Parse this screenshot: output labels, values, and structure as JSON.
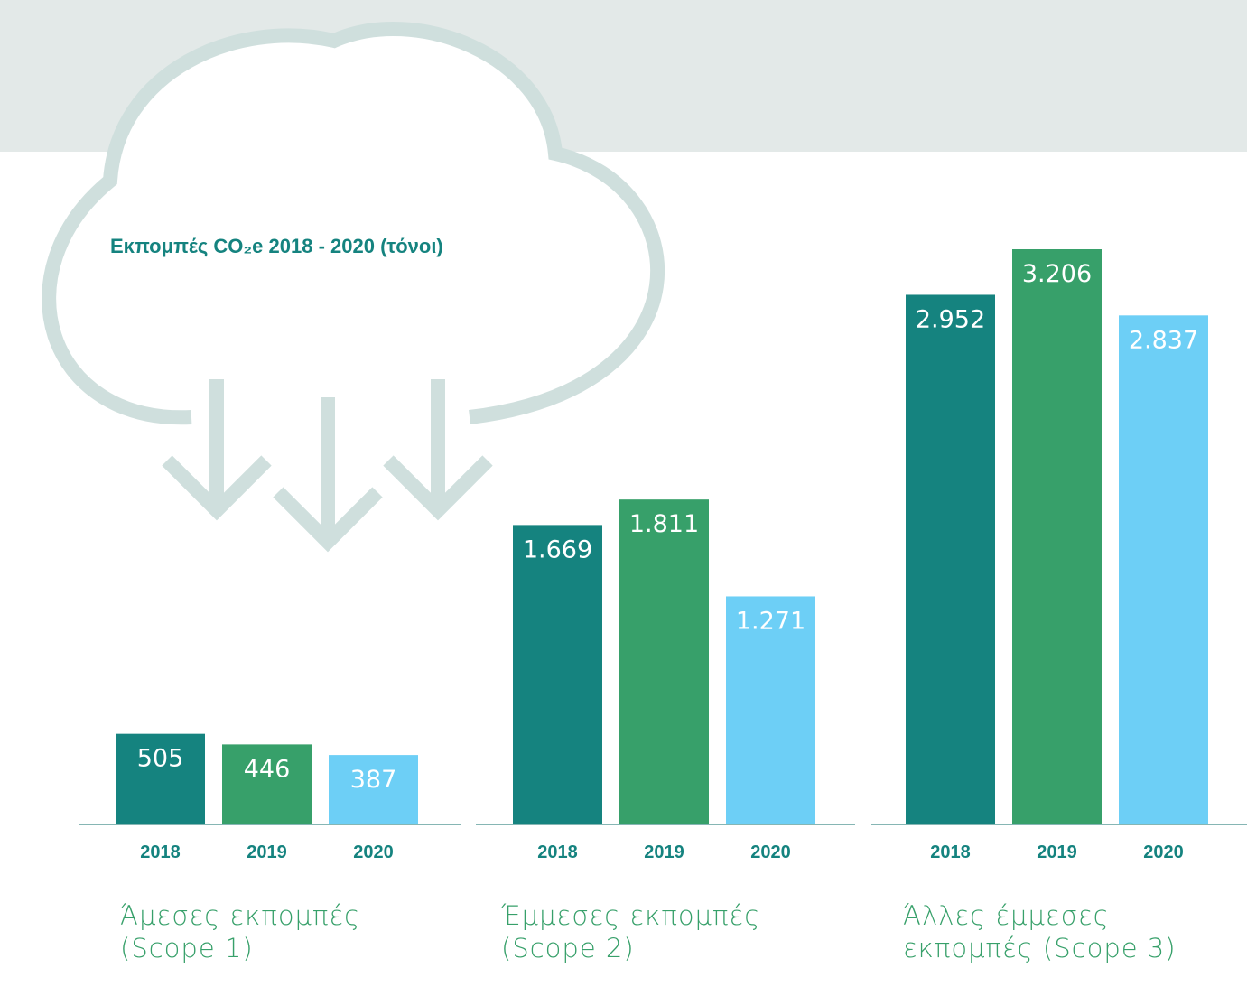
{
  "title": "Εκπομπές CO₂e 2018 - 2020 (τόνοι)",
  "chart_data": [
    {
      "type": "bar",
      "label": "Άμεσες εκπομπές (Scope 1)",
      "categories": [
        "2018",
        "2019",
        "2020"
      ],
      "values": [
        505,
        446,
        387
      ],
      "value_labels": [
        "505",
        "446",
        "387"
      ],
      "colors": [
        "#15837f",
        "#37a06a",
        "#6dcff6"
      ]
    },
    {
      "type": "bar",
      "label": "Έμμεσες εκπομπές (Scope 2)",
      "categories": [
        "2018",
        "2019",
        "2020"
      ],
      "values": [
        1669,
        1811,
        1271
      ],
      "value_labels": [
        "1.669",
        "1.811",
        "1.271"
      ],
      "colors": [
        "#15837f",
        "#37a06a",
        "#6dcff6"
      ]
    },
    {
      "type": "bar",
      "label": "Άλλες έμμεσες εκπομπές (Scope 3)",
      "categories": [
        "2018",
        "2019",
        "2020"
      ],
      "values": [
        2952,
        3206,
        2837
      ],
      "value_labels": [
        "2.952",
        "3.206",
        "2.837"
      ],
      "colors": [
        "#15837f",
        "#37a06a",
        "#6dcff6"
      ]
    }
  ]
}
